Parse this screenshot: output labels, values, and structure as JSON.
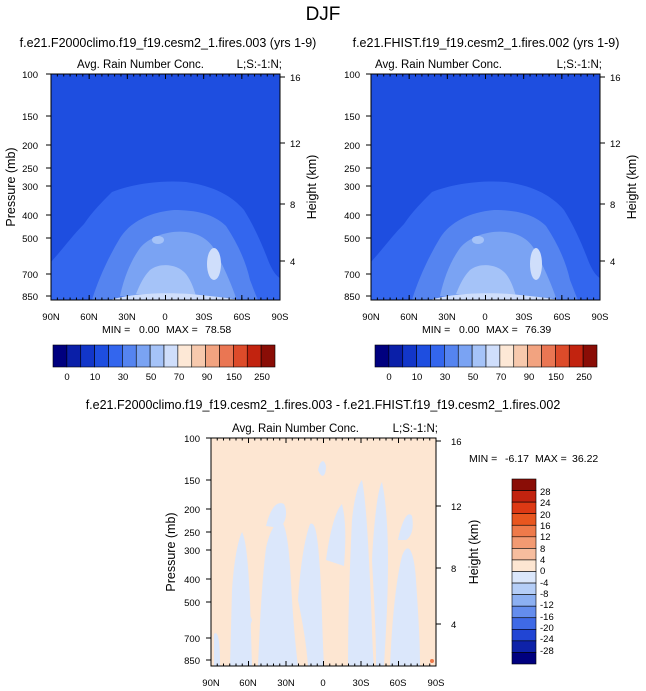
{
  "figure_title": "DJF",
  "chart_data": [
    {
      "type": "contour",
      "panel_title": "f.e21.F2000climo.f19_f19.cesm2_1.fires.003 (yrs 1-9)",
      "variable": "Avg. Rain Number Conc.",
      "corner_label": "L;S:-1:N;",
      "ylabel": "Pressure (mb)",
      "ylabel_right": "Height (km)",
      "x_ticks": [
        "90N",
        "60N",
        "30N",
        "0",
        "30S",
        "60S",
        "90S"
      ],
      "y_ticks": [
        "100",
        "150",
        "200",
        "250",
        "300",
        "400",
        "500",
        "700",
        "850"
      ],
      "y_ticks_right": [
        "16",
        "12",
        "8",
        "4"
      ],
      "stats": {
        "min_label": "MIN =",
        "min": "0.00",
        "max_label": "MAX =",
        "max": "78.58"
      },
      "levels": [
        "0",
        "10",
        "30",
        "50",
        "70",
        "90",
        "150",
        "250"
      ]
    },
    {
      "type": "contour",
      "panel_title": "f.e21.FHIST.f19_f19.cesm2_1.fires.002 (yrs 1-9)",
      "variable": "Avg. Rain Number Conc.",
      "corner_label": "L;S:-1:N;",
      "ylabel": "Pressure (mb)",
      "ylabel_right": "Height (km)",
      "x_ticks": [
        "90N",
        "60N",
        "30N",
        "0",
        "30S",
        "60S",
        "90S"
      ],
      "y_ticks": [
        "100",
        "150",
        "200",
        "250",
        "300",
        "400",
        "500",
        "700",
        "850"
      ],
      "y_ticks_right": [
        "16",
        "12",
        "8",
        "4"
      ],
      "stats": {
        "min_label": "MIN =",
        "min": "0.00",
        "max_label": "MAX =",
        "max": "76.39"
      },
      "levels": [
        "0",
        "10",
        "30",
        "50",
        "70",
        "90",
        "150",
        "250"
      ]
    },
    {
      "type": "contour",
      "panel_title": "f.e21.F2000climo.f19_f19.cesm2_1.fires.003 - f.e21.FHIST.f19_f19.cesm2_1.fires.002",
      "variable": "Avg. Rain Number Conc.",
      "corner_label": "L;S:-1:N;",
      "ylabel": "Pressure (mb)",
      "ylabel_right": "Height (km)",
      "x_ticks": [
        "90N",
        "60N",
        "30N",
        "0",
        "30S",
        "60S",
        "90S"
      ],
      "y_ticks": [
        "100",
        "150",
        "200",
        "250",
        "300",
        "400",
        "500",
        "700",
        "850"
      ],
      "y_ticks_right": [
        "16",
        "12",
        "8",
        "4"
      ],
      "stats": {
        "min_label": "MIN =",
        "min": "-6.17",
        "max_label": "MAX =",
        "max": "36.22"
      },
      "levels": [
        "28",
        "24",
        "20",
        "16",
        "12",
        "8",
        "4",
        "0",
        "-4",
        "-8",
        "-12",
        "-16",
        "-20",
        "-24",
        "-28"
      ]
    }
  ],
  "colors": {
    "seq_bar": [
      "#00007f",
      "#0a1fa8",
      "#1236c9",
      "#1e4ee0",
      "#3366ee",
      "#5584f0",
      "#7aa3f3",
      "#a5c3f8",
      "#cfdefb",
      "#fde8d6",
      "#f7c9ad",
      "#f2a380",
      "#ea7653",
      "#dd4b2a",
      "#c2230f",
      "#8a0d06"
    ],
    "div_bar": [
      "#8a0d06",
      "#c2230f",
      "#dd3914",
      "#e8561f",
      "#ee7a4a",
      "#f29a72",
      "#f6bd9e",
      "#fde6d2",
      "#dbe7fb",
      "#b5cef7",
      "#8cb0f2",
      "#648ded",
      "#3f6ae6",
      "#2145d4",
      "#0e22a8",
      "#00007f"
    ],
    "diff_bg": "#fde6d2",
    "diff_neg": "#dbe7fb"
  }
}
